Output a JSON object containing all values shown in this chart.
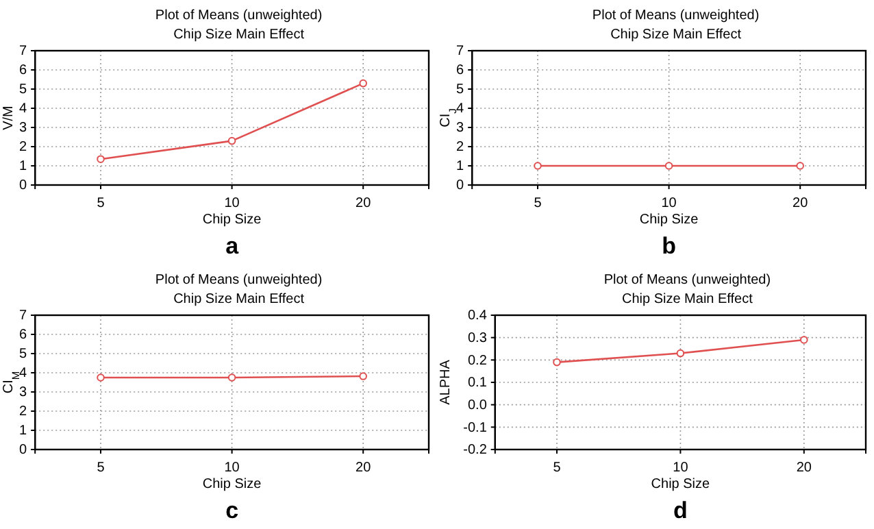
{
  "chart_data": [
    {
      "type": "line",
      "title": "Plot of Means (unweighted)",
      "subtitle": "Chip Size Main Effect",
      "xlabel": "Chip Size",
      "ylabel": "V/M",
      "categories": [
        "5",
        "10",
        "20"
      ],
      "series": [
        {
          "color": "#e05050",
          "values": [
            1.35,
            2.3,
            5.3
          ]
        }
      ],
      "ylim": [
        0,
        7
      ],
      "yticks": [
        0,
        1,
        2,
        3,
        4,
        5,
        6,
        7
      ],
      "grid": true,
      "marker": "circle",
      "annotations": [
        "a"
      ]
    },
    {
      "type": "line",
      "title": "Plot of Means (unweighted)",
      "subtitle": "Chip Size Main Effect",
      "xlabel": "Chip Size",
      "ylabel": "CI$_{J}$",
      "categories": [
        "5",
        "10",
        "20"
      ],
      "series": [
        {
          "color": "#e05050",
          "values": [
            1.0,
            1.0,
            1.0
          ]
        }
      ],
      "ylim": [
        0,
        7
      ],
      "yticks": [
        0,
        1,
        2,
        3,
        4,
        5,
        6,
        7
      ],
      "grid": true,
      "marker": "circle",
      "annotations": [
        "b"
      ]
    },
    {
      "type": "line",
      "title": "Plot of Means (unweighted)",
      "subtitle": "Chip Size Main Effect",
      "xlabel": "Chip Size",
      "ylabel": "CI$_{M}$",
      "categories": [
        "5",
        "10",
        "20"
      ],
      "series": [
        {
          "color": "#e05050",
          "values": [
            3.75,
            3.75,
            3.82
          ]
        }
      ],
      "ylim": [
        0,
        7
      ],
      "yticks": [
        0,
        1,
        2,
        3,
        4,
        5,
        6,
        7
      ],
      "grid": true,
      "marker": "circle",
      "annotations": [
        "c"
      ]
    },
    {
      "type": "line",
      "title": "Plot of Means (unweighted)",
      "subtitle": "Chip Size Main Effect",
      "xlabel": "Chip Size",
      "ylabel": "ALPHA",
      "categories": [
        "5",
        "10",
        "20"
      ],
      "series": [
        {
          "color": "#e05050",
          "values": [
            0.19,
            0.23,
            0.29
          ]
        }
      ],
      "ylim": [
        -0.2,
        0.4
      ],
      "yticks": [
        {
          "value": -0.2,
          "label": "-0.2"
        },
        {
          "value": -0.1,
          "label": "-0.1"
        },
        {
          "value": 0,
          "label": "0.0"
        },
        {
          "value": 0.1,
          "label": "0.1"
        },
        {
          "value": 0.2,
          "label": "0.2"
        },
        {
          "value": 0.3,
          "label": "0.3"
        },
        {
          "value": 0.4,
          "label": "0.4"
        }
      ],
      "grid": true,
      "marker": "circle",
      "annotations": [
        "d"
      ]
    }
  ]
}
